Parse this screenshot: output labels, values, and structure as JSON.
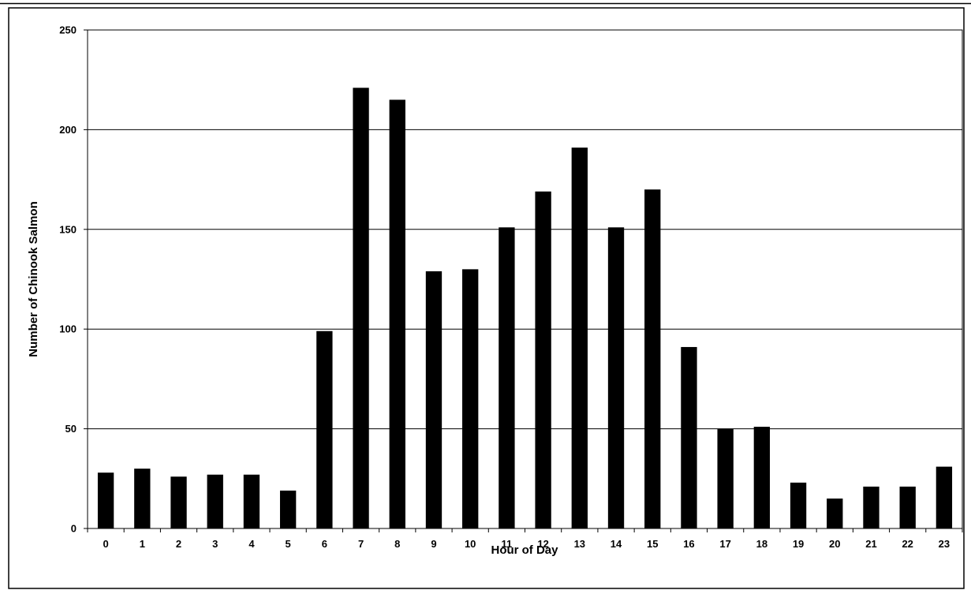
{
  "chart_data": {
    "type": "bar",
    "title": "",
    "xlabel": "Hour of Day",
    "ylabel": "Number of Chinook Salmon",
    "categories": [
      "0",
      "1",
      "2",
      "3",
      "4",
      "5",
      "6",
      "7",
      "8",
      "9",
      "10",
      "11",
      "12",
      "13",
      "14",
      "15",
      "16",
      "17",
      "18",
      "19",
      "20",
      "21",
      "22",
      "23"
    ],
    "values": [
      28,
      30,
      26,
      27,
      27,
      19,
      99,
      221,
      215,
      129,
      130,
      151,
      169,
      191,
      151,
      170,
      91,
      50,
      51,
      23,
      15,
      21,
      21,
      31
    ],
    "ylim": [
      0,
      250
    ],
    "yticks": [
      "0",
      "50",
      "100",
      "150",
      "200",
      "250"
    ],
    "grid": "horizontal",
    "legend": "none",
    "bar_color": "#000000",
    "grid_color": "#000000"
  }
}
